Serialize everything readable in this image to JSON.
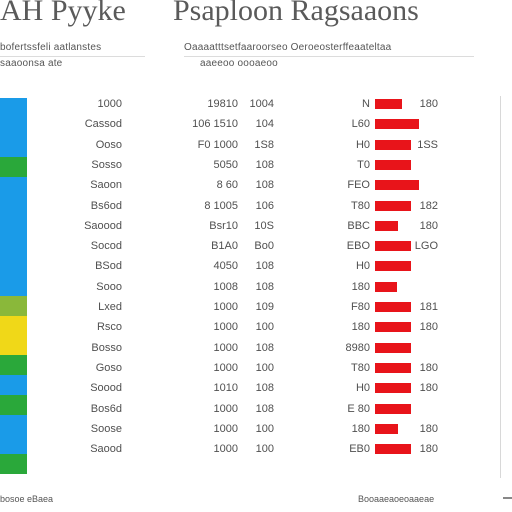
{
  "header": {
    "title_left": "AH Pyyke",
    "title_right": "Psaploon Ragsaaons",
    "subtitle_left_line1": "bofertssfeli aatlanstes",
    "subtitle_left_line2": "saaoonsa ate",
    "subtitle_right_line1": "Oaaaatttsetfaaroorseo Oeroeosterffeaateltaa",
    "subtitle_right_line2": "aaeeoo oooaeoo"
  },
  "side_colors": [
    "#1a9be8",
    "#1a9be8",
    "#1a9be8",
    "#2aa83a",
    "#1a9be8",
    "#1a9be8",
    "#1a9be8",
    "#1a9be8",
    "#1a9be8",
    "#1a9be8",
    "#8ab83a",
    "#f0d818",
    "#f0d818",
    "#2aa83a",
    "#1a9be8",
    "#2aa83a",
    "#1a9be8",
    "#1a9be8",
    "#2aa83a"
  ],
  "accent_bar_color": "#e8141a",
  "rows": [
    {
      "name": "1000",
      "v1": "19810",
      "v2": "1004",
      "v3": "N",
      "v4": "180",
      "bar": 0.62
    },
    {
      "name": "Cassod",
      "v1": "106 1510",
      "v2": "104",
      "v3": "L60",
      "v4": "",
      "bar": 1.0
    },
    {
      "name": "Ooso",
      "v1": "F0 1000",
      "v2": "1S8",
      "v3": "H0",
      "v4": "1SS",
      "bar": 0.82
    },
    {
      "name": "Sosso",
      "v1": "5050",
      "v2": "108",
      "v3": "T0",
      "v4": "",
      "bar": 0.82
    },
    {
      "name": "Saoon",
      "v1": "8 60",
      "v2": "108",
      "v3": "FEO",
      "v4": "",
      "bar": 1.0
    },
    {
      "name": "Bs6od",
      "v1": "8 1005",
      "v2": "106",
      "v3": "T80",
      "v4": "182",
      "bar": 0.82
    },
    {
      "name": "Saoood",
      "v1": "Bsr10",
      "v2": "10S",
      "v3": "BBC",
      "v4": "180",
      "bar": 0.52
    },
    {
      "name": "Socod",
      "v1": "B1A0",
      "v2": "Bo0",
      "v3": "EBO",
      "v4": "LGO",
      "bar": 0.82
    },
    {
      "name": "BSod",
      "v1": "4050",
      "v2": "108",
      "v3": "H0",
      "v4": "",
      "bar": 0.82
    },
    {
      "name": "Sooo",
      "v1": "1008",
      "v2": "108",
      "v3": "180",
      "v4": "",
      "bar": 0.5
    },
    {
      "name": "Lxed",
      "v1": "1000",
      "v2": "109",
      "v3": "F80",
      "v4": "181",
      "bar": 0.82
    },
    {
      "name": "Rsco",
      "v1": "1000",
      "v2": "100",
      "v3": "180",
      "v4": "180",
      "bar": 0.82
    },
    {
      "name": "Bosso",
      "v1": "1000",
      "v2": "108",
      "v3": "8980",
      "v4": "",
      "bar": 0.82
    },
    {
      "name": "Goso",
      "v1": "1000",
      "v2": "100",
      "v3": "T80",
      "v4": "180",
      "bar": 0.82
    },
    {
      "name": "Soood",
      "v1": "1010",
      "v2": "108",
      "v3": "H0",
      "v4": "180",
      "bar": 0.82
    },
    {
      "name": "Bos6d",
      "v1": "1000",
      "v2": "108",
      "v3": "E 80",
      "v4": "",
      "bar": 0.82
    },
    {
      "name": "Soose",
      "v1": "1000",
      "v2": "100",
      "v3": "180",
      "v4": "180",
      "bar": 0.52
    },
    {
      "name": "Saood",
      "v1": "1000",
      "v2": "100",
      "v3": "EB0",
      "v4": "180",
      "bar": 0.82
    }
  ],
  "footer": {
    "left_text": "bosoe eBaea",
    "right_text": "Booaaeaoeoaaeae"
  }
}
